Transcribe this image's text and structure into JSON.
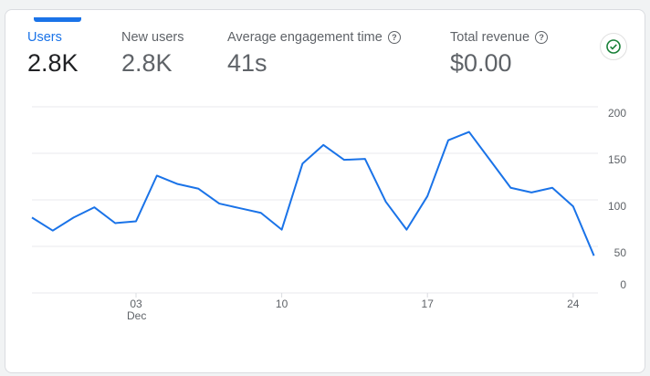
{
  "metrics": [
    {
      "label": "Users",
      "value": "2.8K",
      "active": true
    },
    {
      "label": "New users",
      "value": "2.8K"
    },
    {
      "label": "Average engagement time",
      "value": "41s",
      "help": true
    },
    {
      "label": "Total revenue",
      "value": "$0.00",
      "help": true
    }
  ],
  "status_icon": "check-circle-icon",
  "colors": {
    "accent": "#1a73e8",
    "line": "#1a73e8",
    "check": "#188038"
  },
  "chart_data": {
    "type": "line",
    "title": "",
    "xlabel": "",
    "ylabel": "",
    "ylim": [
      0,
      200
    ],
    "yticks": [
      0,
      50,
      100,
      150,
      200
    ],
    "x_start": "Nov 28",
    "x_end": "Dec 25",
    "x_tick_labels": [
      {
        "day_index": 5,
        "label": "03",
        "sub": "Dec"
      },
      {
        "day_index": 12,
        "label": "10"
      },
      {
        "day_index": 19,
        "label": "17"
      },
      {
        "day_index": 26,
        "label": "24"
      }
    ],
    "series": [
      {
        "name": "Users",
        "values": [
          81,
          67,
          81,
          92,
          75,
          77,
          126,
          117,
          112,
          96,
          91,
          86,
          68,
          139,
          159,
          143,
          144,
          98,
          68,
          104,
          164,
          173,
          143,
          113,
          108,
          113,
          93,
          40
        ]
      }
    ],
    "grid": true
  }
}
